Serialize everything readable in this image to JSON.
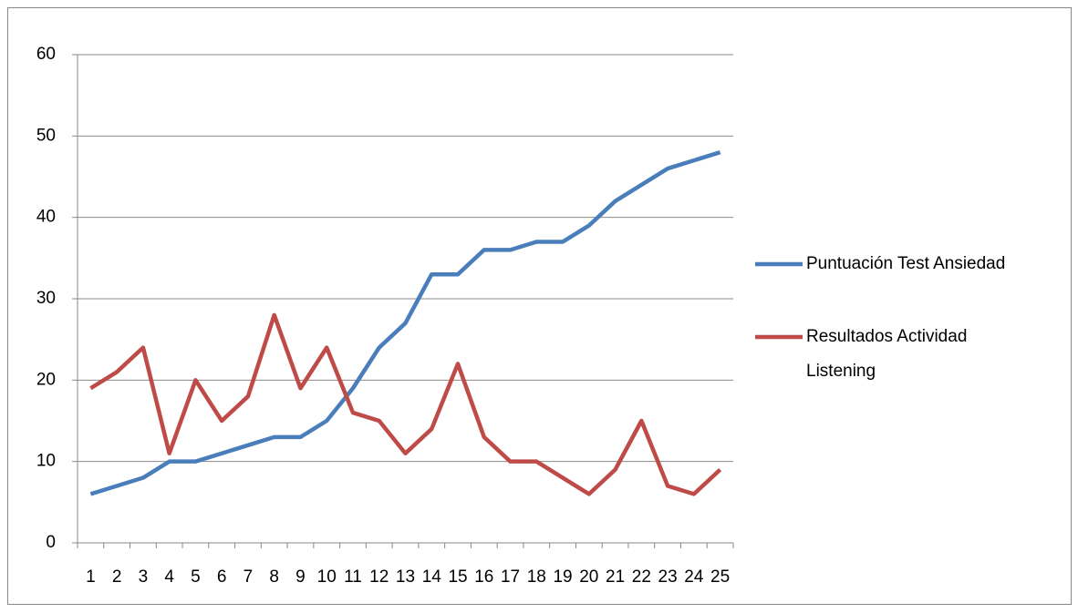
{
  "chart_data": {
    "type": "line",
    "categories": [
      1,
      2,
      3,
      4,
      5,
      6,
      7,
      8,
      9,
      10,
      11,
      12,
      13,
      14,
      15,
      16,
      17,
      18,
      19,
      20,
      21,
      22,
      23,
      24,
      25
    ],
    "series": [
      {
        "name": "Puntuación Test Ansiedad",
        "color": "#4a7ebb",
        "values": [
          6,
          7,
          8,
          10,
          10,
          11,
          12,
          13,
          13,
          15,
          19,
          24,
          27,
          33,
          33,
          36,
          36,
          37,
          37,
          39,
          42,
          44,
          46,
          47,
          48
        ]
      },
      {
        "name": "Resultados Actividad Listening",
        "color": "#be4b48",
        "values": [
          19,
          21,
          24,
          11,
          20,
          15,
          18,
          28,
          19,
          24,
          16,
          15,
          11,
          14,
          22,
          13,
          10,
          10,
          8,
          6,
          9,
          15,
          7,
          6,
          9
        ]
      }
    ],
    "ylim": [
      0,
      60
    ],
    "yticks": [
      0,
      10,
      20,
      30,
      40,
      50,
      60
    ],
    "grid": true,
    "legend": "right"
  }
}
